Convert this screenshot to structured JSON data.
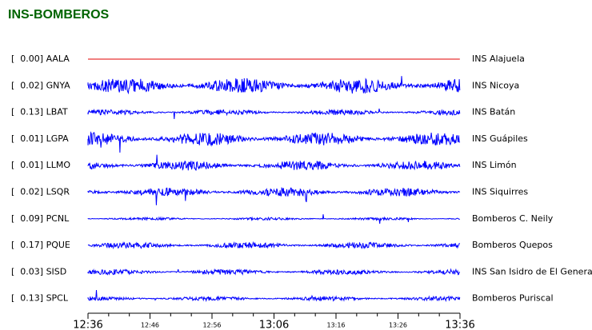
{
  "header": {
    "title": "INS-BOMBEROS"
  },
  "traces": [
    {
      "label": "[  0.00] AALA",
      "name": "INS Alajuela",
      "color": "#e00000",
      "amplitude": 0
    },
    {
      "label": "[  0.02] GNYA",
      "name": "INS Nicoya",
      "color": "#0000ff",
      "amplitude": 0.9
    },
    {
      "label": "[  0.13] LBAT",
      "name": "INS Batán",
      "color": "#0000ff",
      "amplitude": 0.3
    },
    {
      "label": "[  0.01] LGPA",
      "name": "INS Guápiles",
      "color": "#0000ff",
      "amplitude": 0.75
    },
    {
      "label": "[  0.01] LLMO",
      "name": "INS Limón",
      "color": "#0000ff",
      "amplitude": 0.55
    },
    {
      "label": "[  0.02] LSQR",
      "name": "INS Siquirres",
      "color": "#0000ff",
      "amplitude": 0.5
    },
    {
      "label": "[  0.09] PCNL",
      "name": "Bomberos C. Neily",
      "color": "#0000ff",
      "amplitude": 0.15
    },
    {
      "label": "[  0.17] PQUE",
      "name": "Bomberos Quepos",
      "color": "#0000ff",
      "amplitude": 0.35
    },
    {
      "label": "[  0.03] SISD",
      "name": "INS San Isidro de El General",
      "color": "#0000ff",
      "amplitude": 0.3
    },
    {
      "label": "[  0.13] SPCL",
      "name": "Bomberos Puriscal",
      "color": "#0000ff",
      "amplitude": 0.25
    }
  ],
  "time_axis": {
    "labels": [
      {
        "text": "12:36",
        "major": true
      },
      {
        "text": "12:46",
        "major": false
      },
      {
        "text": "12:56",
        "major": false
      },
      {
        "text": "13:06",
        "major": true
      },
      {
        "text": "13:16",
        "major": false
      },
      {
        "text": "13:26",
        "major": false
      },
      {
        "text": "13:36",
        "major": true
      }
    ]
  }
}
